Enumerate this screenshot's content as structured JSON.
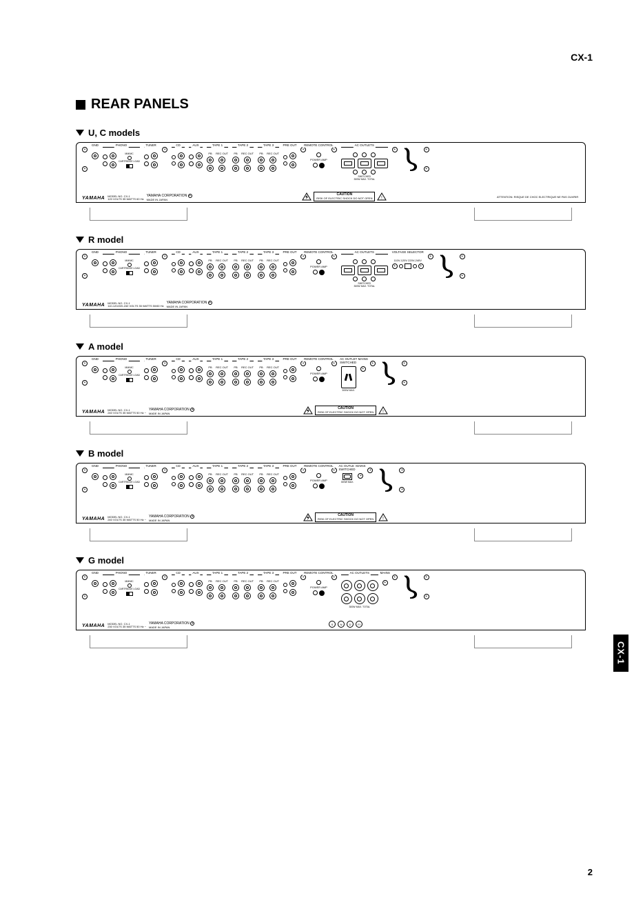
{
  "document": {
    "product_code": "CX-1",
    "section_title": "REAR PANELS",
    "page_number": "2",
    "side_tab": "CX-1"
  },
  "models": [
    {
      "id": "uc",
      "label": "U, C models",
      "voltage_line": "120 VOLTS   35 WATTS   60 Hz",
      "has_voltage_selector": false,
      "has_caution": true,
      "has_attention": true,
      "outlet_style": "us3",
      "has_mains_switch": false
    },
    {
      "id": "r",
      "label": "R model",
      "voltage_line": "110-120/220-240 VOLTS   35 WATTS   50/60 Hz",
      "has_voltage_selector": true,
      "has_caution": false,
      "has_attention": false,
      "outlet_style": "us3",
      "has_mains_switch": false
    },
    {
      "id": "a",
      "label": "A model",
      "voltage_line": "240 VOLTS   35 WATTS   50 Hz ~",
      "has_voltage_selector": false,
      "has_caution": true,
      "has_attention": false,
      "outlet_style": "mains1",
      "has_mains_switch": true
    },
    {
      "id": "b",
      "label": "B model",
      "voltage_line": "240 VOLTS   35 WATTS   50 Hz ~",
      "has_voltage_selector": false,
      "has_caution": true,
      "has_attention": false,
      "outlet_style": "mains1b",
      "has_mains_switch": true
    },
    {
      "id": "g",
      "label": "G model",
      "voltage_line": "230 VOLTS   35 WATTS   50 Hz ~",
      "has_voltage_selector": false,
      "has_caution": false,
      "has_attention": false,
      "outlet_style": "round6",
      "has_mains_switch": true
    }
  ],
  "panel_common": {
    "sections": {
      "gnd": "GND",
      "phono": "PHONO",
      "cartridge": "CARTRIDGE LOAD",
      "tuner": "TUNER",
      "cd": "CD",
      "aux": "AUX",
      "tape1": "TAPE 1",
      "tape2": "TAPE 2",
      "tape3": "TAPE 3",
      "pb": "PB",
      "recout": "REC OUT",
      "preout": "PRE OUT",
      "remote": "REMOTE CONTROL",
      "poweramp": "POWER AMP",
      "ac_outlets": "AC OUTLETS",
      "ac_outlet": "AC OUTLET",
      "voltage_selector": "VOLTAGE SELECTOR",
      "mains": "MAINS",
      "switched": "SWITCHED",
      "unswitched": "UNSWITCHED",
      "max_total": "300W MAX. TOTAL",
      "max_only": "300W MAX."
    },
    "badge": {
      "brand": "YAMAHA",
      "model_no_label": "MODEL NO.",
      "model_no": "CX-1",
      "corp": "YAMAHA CORPORATION",
      "made_in": "MADE IN JAPAN"
    },
    "caution": {
      "title": "CAUTION",
      "line": "RISK OF ELECTRIC SHOCK DO NOT OPEN"
    },
    "attention": "ATTENTION: RISQUE DE CHOC ELECTRIQUE NE PAS OUVRIR",
    "voltage_options": "110V-120V   220V-240V"
  }
}
